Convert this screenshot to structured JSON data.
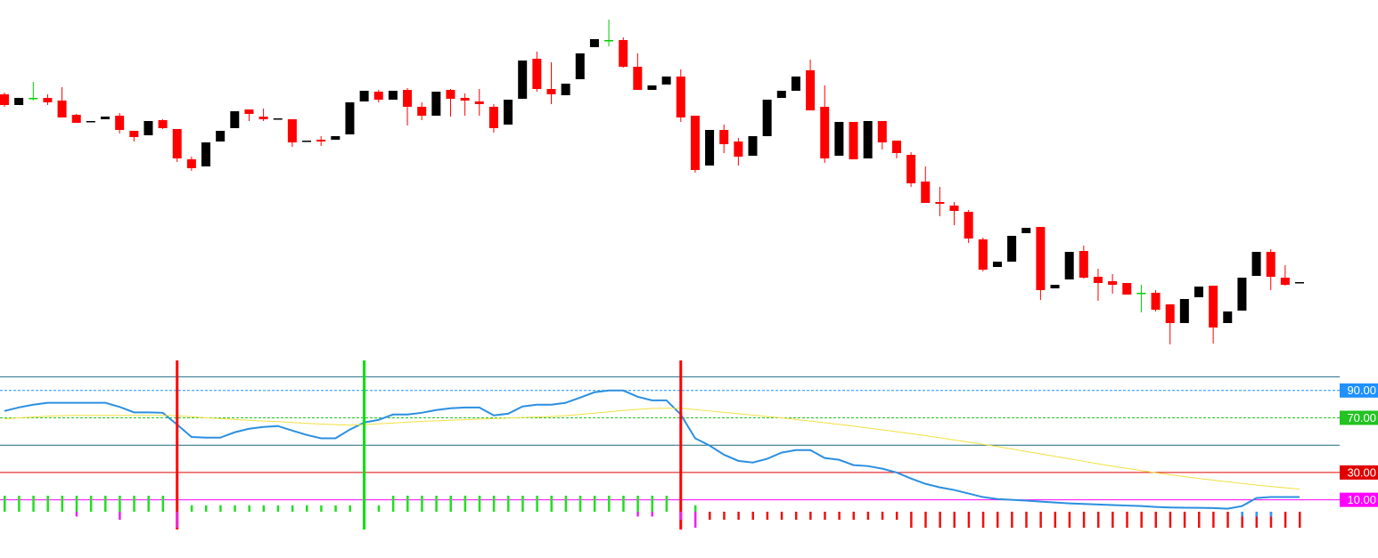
{
  "chart_data": [
    {
      "type": "candlestick",
      "ylim": [
        0,
        400
      ],
      "up_color": "#000000",
      "down_color": "#ff0000",
      "doji_color": "#00cc00",
      "open": [
        294,
        282,
        290,
        290,
        287,
        271,
        263,
        266,
        270,
        253,
        248,
        265,
        255,
        221,
        213,
        241,
        256,
        277,
        269,
        266,
        266,
        241,
        243,
        243,
        249,
        286,
        297,
        288,
        299,
        280,
        270,
        299,
        290,
        286,
        280,
        260,
        289,
        334,
        300,
        293,
        311,
        347,
        355,
        355,
        325,
        299,
        305,
        314,
        270,
        214,
        254,
        241,
        225,
        247,
        290,
        298,
        321,
        280,
        225,
        263,
        222,
        264,
        242,
        226,
        196,
        173,
        169,
        162,
        131,
        100,
        106,
        138,
        145,
        76,
        86,
        118,
        89,
        84,
        82,
        71,
        71,
        58,
        37,
        66,
        79,
        37,
        51,
        90,
        117,
        88,
        82
      ],
      "high": [
        296,
        290,
        308,
        294,
        302,
        272,
        264,
        269,
        273,
        253,
        264,
        266,
        255,
        224,
        240,
        253,
        275,
        277,
        278,
        267,
        266,
        242,
        247,
        247,
        285,
        298,
        299,
        298,
        301,
        285,
        297,
        300,
        295,
        300,
        283,
        288,
        332,
        342,
        330,
        306,
        340,
        356,
        378,
        358,
        340,
        304,
        314,
        322,
        270,
        254,
        260,
        245,
        247,
        288,
        298,
        314,
        333,
        304,
        263,
        263,
        264,
        264,
        242,
        229,
        213,
        190,
        173,
        164,
        133,
        106,
        135,
        144,
        145,
        80,
        117,
        124,
        98,
        92,
        82,
        80,
        74,
        58,
        64,
        78,
        79,
        50,
        88,
        117,
        120,
        102,
        82
      ],
      "low": [
        280,
        282,
        287,
        282,
        268,
        262,
        263,
        266,
        250,
        241,
        248,
        255,
        218,
        208,
        213,
        241,
        256,
        264,
        264,
        266,
        235,
        241,
        236,
        243,
        249,
        286,
        285,
        288,
        259,
        265,
        270,
        269,
        270,
        270,
        251,
        260,
        289,
        297,
        283,
        293,
        311,
        347,
        348,
        324,
        299,
        299,
        305,
        263,
        206,
        214,
        228,
        214,
        225,
        247,
        290,
        298,
        276,
        217,
        225,
        221,
        222,
        232,
        222,
        190,
        172,
        157,
        147,
        127,
        95,
        100,
        106,
        138,
        63,
        76,
        86,
        87,
        62,
        70,
        69,
        49,
        50,
        13,
        37,
        66,
        14,
        37,
        51,
        90,
        74,
        79,
        82
      ],
      "close": [
        282,
        290,
        290,
        285,
        268,
        262,
        264,
        269,
        254,
        246,
        264,
        256,
        222,
        211,
        240,
        253,
        275,
        272,
        266,
        267,
        240,
        242,
        241,
        247,
        285,
        298,
        288,
        298,
        280,
        270,
        297,
        289,
        287,
        283,
        256,
        288,
        332,
        300,
        294,
        306,
        340,
        356,
        355,
        325,
        299,
        304,
        314,
        268,
        209,
        254,
        238,
        224,
        247,
        288,
        298,
        314,
        276,
        222,
        263,
        221,
        264,
        240,
        228,
        194,
        172,
        171,
        163,
        132,
        97,
        106,
        135,
        144,
        74,
        80,
        117,
        88,
        82,
        80,
        69,
        71,
        52,
        37,
        64,
        78,
        32,
        50,
        88,
        117,
        89,
        80,
        83
      ]
    },
    {
      "type": "line",
      "ylim": [
        -15,
        112
      ],
      "yticks": [
        {
          "value": 90,
          "label": "90.00"
        },
        {
          "value": 70,
          "label": "70.00"
        },
        {
          "value": 30,
          "label": "30.00"
        },
        {
          "value": 10,
          "label": "10.00"
        }
      ],
      "tick_colors": [
        "#1e90ff",
        "#22c322",
        "#e00000",
        "#ff00ff"
      ],
      "levels": [
        100,
        50
      ],
      "level_color": "#1f6a80",
      "signals": [
        {
          "at": 12,
          "color": "#ff0000"
        },
        {
          "at": 25,
          "color": "#00e000"
        },
        {
          "at": 47,
          "color": "#ff0000"
        }
      ],
      "series": [
        {
          "color": "#2b8fe0",
          "values": [
            75,
            77.6,
            79.6,
            81,
            81,
            81,
            81,
            81,
            78,
            74,
            74,
            73.7,
            65,
            56,
            55.5,
            55.5,
            59.4,
            62,
            63.3,
            64,
            60.7,
            57.5,
            55,
            55,
            61.4,
            66.6,
            68.5,
            72.4,
            72.4,
            73.7,
            75.7,
            77,
            77.6,
            77.6,
            71.8,
            73,
            78.3,
            79.6,
            79.6,
            81,
            84.8,
            88.7,
            90,
            90,
            85.4,
            82.8,
            82.8,
            72.4,
            55,
            49.7,
            43,
            38.5,
            37.3,
            40,
            44.5,
            46.4,
            46.4,
            40.6,
            39.3,
            35.4,
            34.7,
            32.8,
            30,
            25.6,
            21.7,
            19.1,
            17.2,
            14.6,
            12,
            10.6,
            10,
            9.4,
            8.7,
            8,
            7.4,
            7,
            6.6,
            6.2,
            5.8,
            5.4,
            4.8,
            4.4,
            4.2,
            4.1,
            4,
            3.5,
            5.4,
            11.3,
            12,
            12,
            12
          ]
        },
        {
          "color": "#f0e040",
          "values": [
            69.2,
            70,
            70.6,
            71.2,
            71.6,
            71.8,
            71.8,
            71.8,
            71.8,
            71.8,
            71.8,
            71.8,
            71.5,
            70.8,
            70,
            69.4,
            68.8,
            68.2,
            67.6,
            67.2,
            66.6,
            66,
            65.4,
            65,
            64.6,
            65,
            65.6,
            66.2,
            66.8,
            67.4,
            67.8,
            68.2,
            68.6,
            69,
            69.4,
            69.8,
            70.2,
            70.6,
            71,
            71.6,
            72.4,
            73.4,
            74.4,
            75.4,
            76.2,
            76.8,
            77,
            77,
            76,
            75,
            74,
            73,
            72,
            71,
            70,
            68.8,
            67.6,
            66.4,
            65.2,
            64,
            62.6,
            61.2,
            59.8,
            58.4,
            57,
            55.4,
            53.8,
            52.2,
            50.6,
            49,
            47.2,
            45.4,
            43.6,
            41.8,
            40,
            38.2,
            36.4,
            34.6,
            33,
            31.4,
            29.8,
            28.4,
            27,
            25.6,
            24.4,
            23.2,
            22,
            20.8,
            19.8,
            18.8,
            17.8
          ]
        }
      ]
    },
    {
      "type": "bar",
      "ylim": [
        -10,
        10
      ],
      "series": [
        {
          "color": "#22dd22",
          "values": [
            10,
            10,
            10,
            10,
            10,
            10,
            10,
            10,
            10,
            10,
            10,
            10,
            null,
            4,
            4,
            4,
            4,
            4,
            4,
            4,
            4,
            4,
            4,
            4,
            4,
            null,
            4,
            10,
            10,
            10,
            10,
            10,
            10,
            10,
            10,
            10,
            10,
            10,
            10,
            10,
            10,
            10,
            10,
            10,
            10,
            10,
            10,
            null,
            4,
            null,
            null,
            null,
            null,
            null,
            null,
            null,
            null,
            null,
            null,
            null,
            null,
            null,
            null,
            null,
            null,
            null,
            null,
            null,
            null,
            null,
            null,
            null,
            null,
            null,
            null,
            null,
            null,
            null,
            null,
            null,
            null,
            null,
            null,
            null,
            null,
            null,
            null,
            null,
            null,
            null,
            null
          ]
        },
        {
          "color": "#ee1111",
          "values": [
            null,
            null,
            null,
            null,
            null,
            null,
            null,
            null,
            null,
            null,
            null,
            null,
            null,
            null,
            null,
            null,
            null,
            null,
            null,
            null,
            null,
            null,
            null,
            null,
            null,
            null,
            null,
            null,
            null,
            null,
            null,
            null,
            null,
            null,
            null,
            null,
            null,
            null,
            null,
            null,
            null,
            null,
            null,
            null,
            null,
            null,
            null,
            null,
            null,
            -5,
            -5,
            -5,
            -5,
            -5,
            -5,
            -5,
            -5,
            -5,
            -5,
            -5,
            -5,
            -5,
            -5,
            -10,
            -10,
            -10,
            -10,
            -10,
            -10,
            -10,
            -10,
            -10,
            -10,
            -10,
            -10,
            -10,
            -10,
            -10,
            -10,
            -10,
            -10,
            -10,
            -10,
            -10,
            -10,
            -10,
            -10,
            -10,
            -10,
            -10,
            -10
          ]
        },
        {
          "color": "#ee22ee",
          "values": [
            null,
            null,
            null,
            null,
            null,
            -3,
            null,
            null,
            -5,
            null,
            null,
            null,
            -10,
            null,
            null,
            null,
            null,
            null,
            null,
            null,
            null,
            null,
            null,
            null,
            null,
            null,
            null,
            null,
            null,
            null,
            null,
            null,
            null,
            null,
            null,
            null,
            null,
            null,
            null,
            null,
            null,
            null,
            null,
            null,
            -3,
            -3,
            null,
            -5,
            -10,
            null,
            null,
            null,
            null,
            null,
            null,
            null,
            null,
            null,
            null,
            null,
            null,
            null,
            null,
            null,
            null,
            null,
            null,
            null,
            null,
            null,
            null,
            null,
            null,
            null,
            null,
            null,
            null,
            null,
            null,
            null,
            null,
            null,
            null,
            null,
            null,
            null,
            null,
            null,
            null,
            null,
            null
          ]
        },
        {
          "color": "#3399ff",
          "values": [
            null,
            null,
            null,
            null,
            null,
            null,
            null,
            null,
            null,
            null,
            null,
            null,
            null,
            null,
            null,
            null,
            null,
            null,
            null,
            null,
            null,
            null,
            null,
            null,
            null,
            null,
            null,
            null,
            null,
            null,
            null,
            null,
            null,
            null,
            null,
            null,
            null,
            null,
            null,
            null,
            null,
            null,
            null,
            null,
            null,
            null,
            null,
            null,
            null,
            null,
            null,
            null,
            null,
            null,
            null,
            null,
            null,
            null,
            null,
            null,
            null,
            null,
            null,
            null,
            null,
            null,
            null,
            null,
            null,
            null,
            null,
            null,
            null,
            null,
            null,
            null,
            null,
            null,
            null,
            null,
            null,
            null,
            null,
            null,
            null,
            null,
            -3,
            -3,
            -3,
            null,
            null
          ]
        }
      ]
    }
  ]
}
